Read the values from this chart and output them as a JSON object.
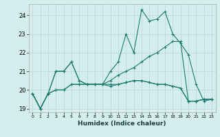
{
  "xlabel": "Humidex (Indice chaleur)",
  "background_color": "#d4eeee",
  "grid_color": "#c0d8d8",
  "line_color": "#1a7a6e",
  "xlim": [
    -0.5,
    23.5
  ],
  "ylim": [
    18.8,
    24.6
  ],
  "yticks": [
    19,
    20,
    21,
    22,
    23,
    24
  ],
  "xticks": [
    0,
    1,
    2,
    3,
    4,
    5,
    6,
    7,
    8,
    9,
    10,
    11,
    12,
    13,
    14,
    15,
    16,
    17,
    18,
    19,
    20,
    21,
    22,
    23
  ],
  "lines": [
    [
      19.8,
      19.0,
      19.8,
      21.0,
      21.0,
      21.5,
      20.5,
      20.3,
      20.3,
      20.3,
      21.0,
      21.5,
      23.0,
      22.0,
      24.3,
      23.7,
      23.8,
      24.2,
      23.0,
      22.5,
      21.9,
      20.3,
      19.4,
      19.5
    ],
    [
      19.8,
      19.0,
      19.8,
      21.0,
      21.0,
      21.5,
      20.5,
      20.3,
      20.3,
      20.3,
      20.5,
      20.8,
      21.0,
      21.2,
      21.5,
      21.8,
      22.0,
      22.3,
      22.6,
      22.6,
      19.4,
      19.4,
      19.5,
      19.5
    ],
    [
      19.8,
      19.0,
      19.8,
      20.0,
      20.0,
      20.3,
      20.3,
      20.3,
      20.3,
      20.3,
      20.3,
      20.3,
      20.4,
      20.5,
      20.5,
      20.4,
      20.3,
      20.3,
      20.2,
      20.1,
      19.4,
      19.4,
      19.5,
      19.5
    ],
    [
      19.8,
      19.0,
      19.8,
      20.0,
      20.0,
      20.3,
      20.3,
      20.3,
      20.3,
      20.3,
      20.2,
      20.3,
      20.4,
      20.5,
      20.5,
      20.4,
      20.3,
      20.3,
      20.2,
      20.1,
      19.4,
      19.4,
      19.5,
      19.5
    ]
  ]
}
